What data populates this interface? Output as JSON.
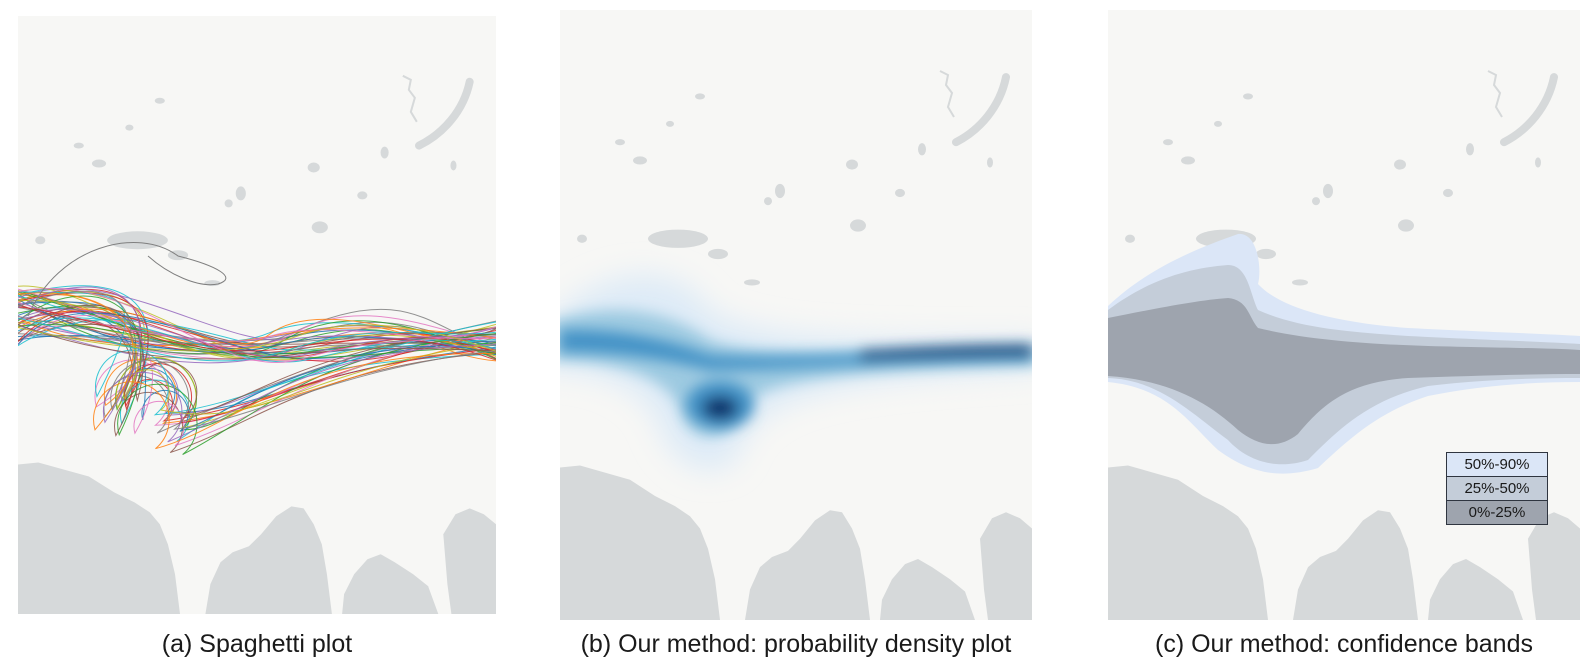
{
  "figure": {
    "panels": [
      {
        "id": "a",
        "caption": "(a) Spaghetti plot",
        "visualization": "spaghetti",
        "track_count": 60
      },
      {
        "id": "b",
        "caption": "(b) Our method: probability density plot",
        "visualization": "density",
        "colormap": [
          "#deebf7",
          "#9ecae1",
          "#4292c6",
          "#08306b"
        ]
      },
      {
        "id": "c",
        "caption": "(c) Our method: confidence bands",
        "visualization": "bands",
        "legend": [
          {
            "label": "50%-90%",
            "color": "#dbe6f7"
          },
          {
            "label": "25%-50%",
            "color": "#c4cdd9"
          },
          {
            "label": "0%-25%",
            "color": "#9ea4ae"
          }
        ]
      }
    ],
    "colors": {
      "map_background": "#f7f7f5",
      "land_gray": "#d6d9da",
      "band_outer": "#dbe6f7",
      "band_mid": "#c4cdd9",
      "band_inner": "#9ea4ae"
    }
  }
}
